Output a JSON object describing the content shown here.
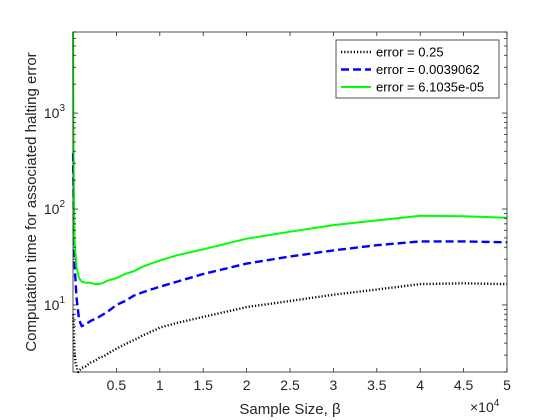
{
  "chart_data": {
    "type": "line",
    "title": "",
    "xlabel": "Sample Size, β",
    "ylabel": "Computation time for associated halting error",
    "x_scale_note": "×10",
    "x_scale_exp": "4",
    "xlim": [
      0,
      50000
    ],
    "ylim": [
      2,
      7000
    ],
    "yscale": "log",
    "grid": false,
    "legend_position": "top-right",
    "x_ticks": [
      5000,
      10000,
      15000,
      20000,
      25000,
      30000,
      35000,
      40000,
      45000,
      50000
    ],
    "x_tick_labels": [
      "0.5",
      "1",
      "1.5",
      "2",
      "2.5",
      "3",
      "3.5",
      "4",
      "4.5",
      "5"
    ],
    "y_ticks": [
      10,
      100,
      1000
    ],
    "y_tick_bases": [
      "10",
      "10",
      "10"
    ],
    "y_tick_exps": [
      "1",
      "2",
      "3"
    ],
    "series": [
      {
        "name": "error = 0.25",
        "color": "#000000",
        "dash": "dotted",
        "x": [
          10,
          100,
          200,
          300,
          400,
          500,
          600,
          800,
          1000,
          1500,
          2000,
          2500,
          3000,
          3500,
          4000,
          4500,
          5000,
          5500,
          6000,
          6500,
          7000,
          7500,
          8000,
          8500,
          9000,
          9500,
          10000,
          12000,
          15000,
          20000,
          25000,
          30000,
          35000,
          40000,
          45000,
          50000
        ],
        "y": [
          8,
          4.5,
          3.0,
          2.5,
          2.3,
          2.1,
          2.0,
          2.1,
          2.2,
          2.3,
          2.5,
          2.6,
          2.8,
          2.9,
          3.1,
          3.3,
          3.5,
          3.7,
          3.9,
          4.1,
          4.3,
          4.5,
          4.8,
          5.0,
          5.3,
          5.5,
          5.8,
          6.5,
          7.5,
          9.5,
          11.0,
          12.8,
          14.5,
          16.5,
          16.8,
          16.5
        ]
      },
      {
        "name": "error = 0.0039062",
        "color": "#0000ff",
        "dash": "dashed",
        "x": [
          10,
          100,
          200,
          400,
          700,
          1000,
          1500,
          2000,
          3000,
          4000,
          5000,
          6000,
          7000,
          8000,
          9000,
          10000,
          12000,
          15000,
          20000,
          25000,
          30000,
          35000,
          40000,
          45000,
          50000
        ],
        "y": [
          380,
          60,
          25,
          12,
          7.0,
          6.0,
          6.3,
          6.8,
          7.5,
          8.5,
          10,
          11,
          12.5,
          13.5,
          14.5,
          15.5,
          17.5,
          21,
          27,
          32,
          37,
          42,
          46,
          46,
          45
        ]
      },
      {
        "name": "error = 6.1035e-05",
        "color": "#00ff00",
        "dash": "solid",
        "x": [
          10,
          50,
          100,
          200,
          400,
          700,
          1000,
          1500,
          2000,
          2500,
          3000,
          3500,
          4000,
          5000,
          6000,
          7000,
          8000,
          9000,
          10000,
          12000,
          15000,
          20000,
          25000,
          30000,
          35000,
          40000,
          45000,
          50000
        ],
        "y": [
          7000,
          700,
          120,
          45,
          25,
          19,
          17.5,
          17,
          17,
          16.5,
          16.5,
          17,
          18,
          19,
          21,
          22.5,
          25,
          27,
          29,
          33,
          38,
          49,
          58,
          68,
          76,
          85,
          84,
          81
        ]
      }
    ]
  }
}
